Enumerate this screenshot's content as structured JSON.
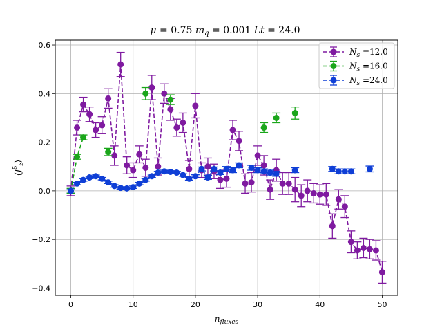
{
  "chart_data": {
    "type": "scatter",
    "title": "μ = 0.75 m_q = 0.001 Lt = 24.0",
    "title_parts": [
      {
        "text": "μ",
        "italic": true
      },
      {
        "text": " = 0.75 ",
        "italic": false
      },
      {
        "text": "m",
        "italic": true
      },
      {
        "text": "q",
        "italic": true,
        "sub": true
      },
      {
        "text": " = 0.001 ",
        "italic": false
      },
      {
        "text": "Lt",
        "italic": true
      },
      {
        "text": " = 24.0",
        "italic": false
      }
    ],
    "xlabel": "n_fluxes",
    "xlabel_main": "n",
    "xlabel_sub": "fluxes",
    "ylabel": "⟨J_z^5⟩",
    "ylabel_main": "⟨J",
    "ylabel_sub": "z",
    "ylabel_sup": "5",
    "ylabel_close": "⟩",
    "xlim": [
      -2.5,
      52.5
    ],
    "ylim": [
      -0.43,
      0.62
    ],
    "x_ticks": [
      0,
      10,
      20,
      30,
      40,
      50
    ],
    "x_tick_labels": [
      "0",
      "10",
      "20",
      "30",
      "40",
      "50"
    ],
    "y_ticks": [
      -0.4,
      -0.2,
      0.0,
      0.2,
      0.4,
      0.6
    ],
    "y_tick_labels": [
      "−0.4",
      "−0.2",
      "0.0",
      "0.2",
      "0.4",
      "0.6"
    ],
    "grid": true,
    "legend_position": "top-right",
    "series": [
      {
        "name": "N_s =12.0",
        "label_var": "N",
        "label_sub": "s",
        "label_value": " =12.0",
        "color": "#7f1aa0",
        "dashed_line": true,
        "x": [
          0,
          1,
          2,
          3,
          4,
          5,
          6,
          7,
          8,
          9,
          10,
          11,
          12,
          13,
          14,
          15,
          16,
          17,
          18,
          19,
          20,
          21,
          22,
          23,
          24,
          25,
          26,
          27,
          28,
          29,
          30,
          31,
          32,
          33,
          34,
          35,
          36,
          37,
          38,
          39,
          40,
          41,
          42,
          43,
          44,
          45,
          46,
          47,
          48,
          49,
          50
        ],
        "y": [
          0.0,
          0.26,
          0.355,
          0.315,
          0.25,
          0.27,
          0.38,
          0.145,
          0.52,
          0.105,
          0.085,
          0.15,
          0.095,
          0.425,
          0.1,
          0.4,
          0.335,
          0.26,
          0.28,
          0.09,
          0.35,
          0.085,
          0.1,
          0.08,
          0.045,
          0.05,
          0.25,
          0.205,
          0.03,
          0.035,
          0.145,
          0.105,
          0.005,
          0.085,
          0.03,
          0.03,
          0.005,
          -0.02,
          0.0,
          -0.01,
          -0.015,
          -0.015,
          -0.145,
          -0.035,
          -0.065,
          -0.21,
          -0.245,
          -0.235,
          -0.24,
          -0.245,
          -0.335
        ],
        "err": [
          0.02,
          0.03,
          0.03,
          0.03,
          0.03,
          0.035,
          0.04,
          0.04,
          0.05,
          0.035,
          0.03,
          0.035,
          0.035,
          0.05,
          0.035,
          0.04,
          0.045,
          0.035,
          0.04,
          0.035,
          0.05,
          0.03,
          0.035,
          0.03,
          0.035,
          0.035,
          0.04,
          0.04,
          0.04,
          0.04,
          0.04,
          0.04,
          0.04,
          0.045,
          0.045,
          0.045,
          0.05,
          0.045,
          0.045,
          0.04,
          0.04,
          0.045,
          0.05,
          0.04,
          0.045,
          0.045,
          0.035,
          0.04,
          0.04,
          0.04,
          0.045
        ]
      },
      {
        "name": "N_s =16.0",
        "label_var": "N",
        "label_sub": "s",
        "label_value": " =16.0",
        "color": "#1aa61a",
        "dashed_line": true,
        "line_until_index": 2,
        "x": [
          0,
          1,
          2,
          6,
          12,
          16,
          31,
          33,
          36
        ],
        "y": [
          0.0,
          0.14,
          0.22,
          0.16,
          0.4,
          0.375,
          0.26,
          0.3,
          0.32
        ],
        "err": [
          0.01,
          0.01,
          0.01,
          0.015,
          0.025,
          0.02,
          0.02,
          0.02,
          0.025
        ]
      },
      {
        "name": "N_s =24.0",
        "label_var": "N",
        "label_sub": "s",
        "label_value": " =24.0",
        "color": "#0f3fd6",
        "dashed_line": true,
        "line_until_index": 27,
        "x": [
          0,
          1,
          2,
          3,
          4,
          5,
          6,
          7,
          8,
          9,
          10,
          11,
          12,
          13,
          14,
          15,
          16,
          17,
          18,
          19,
          20,
          21,
          22,
          23,
          24,
          25,
          26,
          27,
          29,
          30,
          31,
          32,
          33,
          36,
          42,
          43,
          44,
          45,
          48
        ],
        "y": [
          0.0,
          0.03,
          0.045,
          0.055,
          0.06,
          0.05,
          0.035,
          0.02,
          0.012,
          0.01,
          0.015,
          0.03,
          0.045,
          0.06,
          0.075,
          0.08,
          0.078,
          0.075,
          0.065,
          0.05,
          0.06,
          0.09,
          0.055,
          0.09,
          0.075,
          0.09,
          0.085,
          0.105,
          0.095,
          0.085,
          0.08,
          0.075,
          0.07,
          0.085,
          0.09,
          0.08,
          0.08,
          0.08,
          0.09
        ],
        "err": [
          0.005,
          0.005,
          0.005,
          0.005,
          0.005,
          0.005,
          0.005,
          0.005,
          0.005,
          0.005,
          0.005,
          0.005,
          0.005,
          0.005,
          0.005,
          0.005,
          0.005,
          0.005,
          0.005,
          0.006,
          0.006,
          0.008,
          0.008,
          0.008,
          0.008,
          0.01,
          0.01,
          0.01,
          0.01,
          0.01,
          0.01,
          0.01,
          0.01,
          0.01,
          0.01,
          0.01,
          0.01,
          0.01,
          0.012
        ]
      }
    ]
  }
}
